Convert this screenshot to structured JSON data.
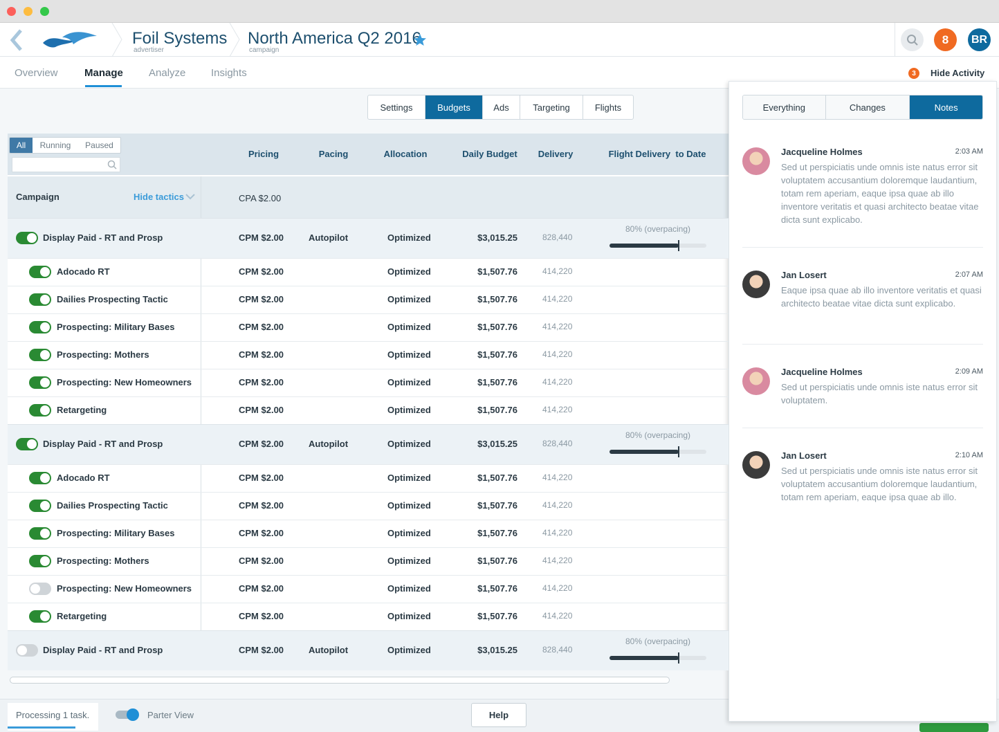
{
  "header": {
    "advertiser": "Foil Systems",
    "advertiser_label": "advertiser",
    "campaign": "North America Q2 2016",
    "campaign_label": "campaign",
    "notifications": "8",
    "avatar": "BR"
  },
  "nav": {
    "tabs": [
      "Overview",
      "Manage",
      "Analyze",
      "Insights"
    ],
    "active": 1
  },
  "activity": {
    "count": "3",
    "toggle": "Hide Activity"
  },
  "subtabs": {
    "items": [
      "Settings",
      "Budgets",
      "Ads",
      "Targeting",
      "Flights"
    ],
    "active": 1
  },
  "filters": {
    "items": [
      "All",
      "Running",
      "Paused"
    ],
    "active": 0
  },
  "table": {
    "columns": [
      "Pricing",
      "Pacing",
      "Allocation",
      "Daily Budget",
      "Delivery",
      "Flight Delivery  to Date"
    ],
    "campaign_label": "Campaign",
    "hide_tactics": "Hide tactics",
    "default_pricing": "CPA $2.00",
    "groups": [
      {
        "name": "Display Paid - RT and Prosp",
        "on": true,
        "pricing": "CPM $2.00",
        "pacing": "Autopilot",
        "allocation": "Optimized",
        "budget": "$3,015.25",
        "delivery": "828,440",
        "flight": "80% (overpacing)",
        "tactics": [
          {
            "name": "Adocado RT",
            "on": true,
            "pricing": "CPM $2.00",
            "allocation": "Optimized",
            "budget": "$1,507.76",
            "delivery": "414,220"
          },
          {
            "name": "Dailies Prospecting Tactic",
            "on": true,
            "pricing": "CPM $2.00",
            "allocation": "Optimized",
            "budget": "$1,507.76",
            "delivery": "414,220"
          },
          {
            "name": "Prospecting: Military Bases",
            "on": true,
            "pricing": "CPM $2.00",
            "allocation": "Optimized",
            "budget": "$1,507.76",
            "delivery": "414,220"
          },
          {
            "name": "Prospecting: Mothers",
            "on": true,
            "pricing": "CPM $2.00",
            "allocation": "Optimized",
            "budget": "$1,507.76",
            "delivery": "414,220"
          },
          {
            "name": "Prospecting: New Homeowners",
            "on": true,
            "pricing": "CPM $2.00",
            "allocation": "Optimized",
            "budget": "$1,507.76",
            "delivery": "414,220"
          },
          {
            "name": "Retargeting",
            "on": true,
            "pricing": "CPM $2.00",
            "allocation": "Optimized",
            "budget": "$1,507.76",
            "delivery": "414,220"
          }
        ]
      },
      {
        "name": "Display Paid - RT and Prosp",
        "on": true,
        "pricing": "CPM $2.00",
        "pacing": "Autopilot",
        "allocation": "Optimized",
        "budget": "$3,015.25",
        "delivery": "828,440",
        "flight": "80% (overpacing)",
        "tactics": [
          {
            "name": "Adocado RT",
            "on": true,
            "pricing": "CPM $2.00",
            "allocation": "Optimized",
            "budget": "$1,507.76",
            "delivery": "414,220"
          },
          {
            "name": "Dailies Prospecting Tactic",
            "on": true,
            "pricing": "CPM $2.00",
            "allocation": "Optimized",
            "budget": "$1,507.76",
            "delivery": "414,220"
          },
          {
            "name": "Prospecting: Military Bases",
            "on": true,
            "pricing": "CPM $2.00",
            "allocation": "Optimized",
            "budget": "$1,507.76",
            "delivery": "414,220"
          },
          {
            "name": "Prospecting: Mothers",
            "on": true,
            "pricing": "CPM $2.00",
            "allocation": "Optimized",
            "budget": "$1,507.76",
            "delivery": "414,220"
          },
          {
            "name": "Prospecting: New Homeowners",
            "on": false,
            "pricing": "CPM $2.00",
            "allocation": "Optimized",
            "budget": "$1,507.76",
            "delivery": "414,220"
          },
          {
            "name": "Retargeting",
            "on": true,
            "pricing": "CPM $2.00",
            "allocation": "Optimized",
            "budget": "$1,507.76",
            "delivery": "414,220"
          }
        ]
      },
      {
        "name": "Display Paid - RT and Prosp",
        "on": false,
        "pricing": "CPM $2.00",
        "pacing": "Autopilot",
        "allocation": "Optimized",
        "budget": "$3,015.25",
        "delivery": "828,440",
        "flight": "80% (overpacing)",
        "tactics": []
      }
    ]
  },
  "panel": {
    "tabs": [
      "Everything",
      "Changes",
      "Notes"
    ],
    "active": 2,
    "notes": [
      {
        "author": "Jacqueline Holmes",
        "time": "2:03 AM",
        "text": "Sed ut perspiciatis unde omnis iste natus error sit voluptatem accusantium doloremque laudantium, totam rem aperiam, eaque ipsa quae ab illo inventore veritatis et quasi architecto beatae vitae dicta sunt explicabo."
      },
      {
        "author": "Jan Losert",
        "time": "2:07 AM",
        "text": "Eaque ipsa quae ab illo inventore veritatis et quasi architecto beatae vitae dicta sunt explicabo."
      },
      {
        "author": "Jacqueline Holmes",
        "time": "2:09 AM",
        "text": "Sed ut perspiciatis unde omnis iste natus error sit voluptatem."
      },
      {
        "author": "Jan Losert",
        "time": "2:10 AM",
        "text": "Sed ut perspiciatis unde omnis iste natus error sit voluptatem accusantium  doloremque laudantium, totam rem aperiam, eaque ipsa quae ab illo."
      }
    ]
  },
  "footer": {
    "status": "Processing 1 task.",
    "partner_view": "Parter View",
    "help": "Help"
  }
}
